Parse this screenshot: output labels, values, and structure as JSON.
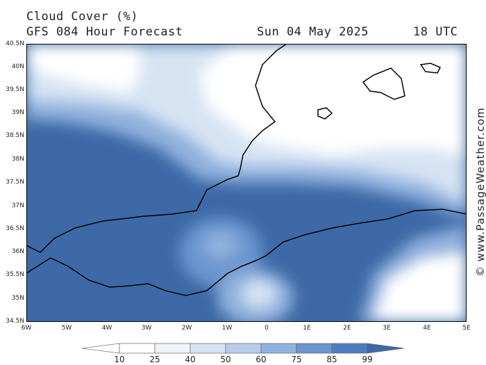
{
  "title": {
    "line1": "Cloud Cover (%)",
    "line2": "GFS 084 Hour Forecast",
    "date": "Sun 04 May 2025",
    "time": "18 UTC"
  },
  "watermark": "© www.PassageWeather.com",
  "latitude_labels": [
    "40.5N",
    "40N",
    "39.5N",
    "39N",
    "38.5N",
    "38N",
    "37.5N",
    "37N",
    "36.5N",
    "36N",
    "35.5N",
    "35N",
    "34.5N"
  ],
  "longitude_labels": [
    "6W",
    "5W",
    "4W",
    "3W",
    "2W",
    "1W",
    "0",
    "1E",
    "2E",
    "3E",
    "4E",
    "5E"
  ],
  "colorbar": {
    "labels": [
      "10",
      "25",
      "40",
      "50",
      "60",
      "75",
      "85",
      "99"
    ],
    "colors": [
      "#ffffff",
      "#eef3fa",
      "#d6e3f3",
      "#b6cce9",
      "#8fb1dd",
      "#6b95cf",
      "#4d7dc0",
      "#3d69a6"
    ]
  }
}
